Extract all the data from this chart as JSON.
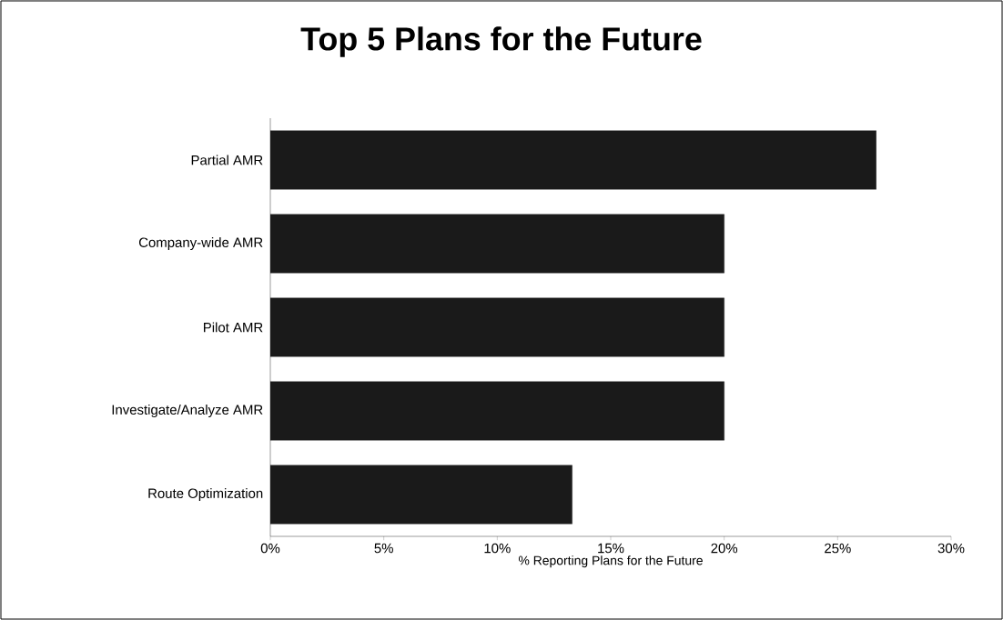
{
  "chart_data": {
    "type": "bar",
    "orientation": "horizontal",
    "title": "Top 5 Plans for the Future",
    "categories": [
      "Partial AMR",
      "Company-wide AMR",
      "Pilot AMR",
      "Investigate/Analyze AMR",
      "Route Optimization"
    ],
    "values": [
      26.7,
      20,
      20,
      20,
      13.3
    ],
    "color": "#1a1a1a",
    "xlabel": "% Reporting Plans for the Future",
    "xlim": [
      0,
      30
    ],
    "xticks": [
      {
        "value": 0,
        "label": "0%"
      },
      {
        "value": 5,
        "label": "5%"
      },
      {
        "value": 10,
        "label": "10%"
      },
      {
        "value": 15,
        "label": "15%"
      },
      {
        "value": 20,
        "label": "20%"
      },
      {
        "value": 25,
        "label": "25%"
      },
      {
        "value": 30,
        "label": "30%"
      }
    ]
  }
}
